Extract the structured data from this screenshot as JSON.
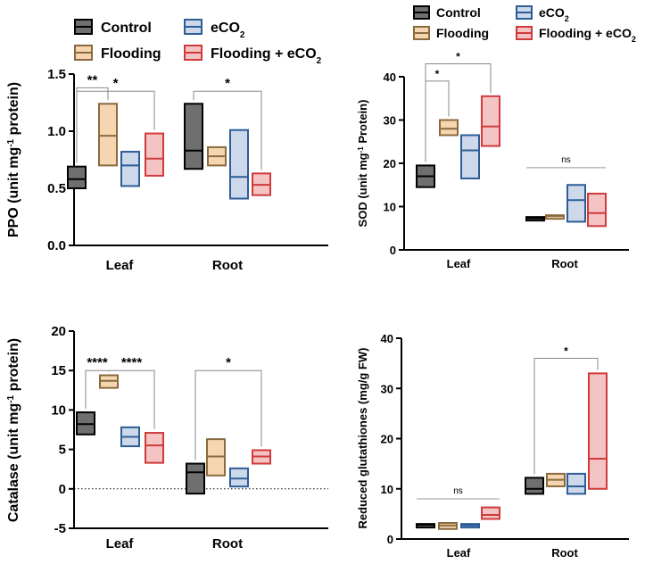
{
  "legend_colors": {
    "Control": {
      "fill": "#6f6f6f",
      "stroke": "#000000"
    },
    "Flooding": {
      "fill": "#f5d6b0",
      "stroke": "#8a6a3e"
    },
    "eCO2": {
      "fill": "#cdd9ea",
      "stroke": "#2d5d97"
    },
    "Flooding + eCO2": {
      "fill": "#f4c4c5",
      "stroke": "#d03a3a"
    }
  },
  "chart_data": [
    {
      "id": "ppo",
      "type": "box",
      "title": "",
      "ylabel": "PPO (unit mg",
      "ylabel_sup": "-1",
      "ylabel_end": " protein)",
      "ylim": [
        0,
        1.5
      ],
      "yticks": [
        "0.0",
        "0.5",
        "1.0",
        "1.5"
      ],
      "categories": [
        "Leaf",
        "Root"
      ],
      "legend": [
        {
          "label": "Control",
          "key": "Control"
        },
        {
          "label": "eCO",
          "sub": "2",
          "key": "eCO2"
        },
        {
          "label": "Flooding",
          "key": "Flooding"
        },
        {
          "label": "Flooding + eCO",
          "sub": "2",
          "key": "Flooding + eCO2"
        }
      ],
      "series": [
        {
          "name": "Control",
          "boxes": [
            {
              "min": 0.5,
              "median": 0.58,
              "max": 0.69
            },
            {
              "min": 0.67,
              "median": 0.83,
              "max": 1.24
            }
          ]
        },
        {
          "name": "Flooding",
          "boxes": [
            {
              "min": 0.7,
              "median": 0.96,
              "max": 1.24
            },
            {
              "min": 0.7,
              "median": 0.78,
              "max": 0.86
            }
          ]
        },
        {
          "name": "eCO2",
          "boxes": [
            {
              "min": 0.52,
              "median": 0.7,
              "max": 0.82
            },
            {
              "min": 0.41,
              "median": 0.6,
              "max": 1.01
            }
          ]
        },
        {
          "name": "Flooding + eCO2",
          "boxes": [
            {
              "min": 0.61,
              "median": 0.76,
              "max": 0.98
            },
            {
              "min": 0.44,
              "median": 0.53,
              "max": 0.63
            }
          ]
        }
      ],
      "annotations": [
        {
          "label": "**",
          "cat": 0,
          "from": 0,
          "to": 1,
          "y": 1.38
        },
        {
          "label": "*",
          "cat": 0,
          "from": 0,
          "to": 3,
          "y": 1.35
        },
        {
          "label": "*",
          "cat": 1,
          "from": 0,
          "to": 3,
          "y": 1.35
        }
      ]
    },
    {
      "id": "sod",
      "type": "box",
      "title": "",
      "ylabel": "SOD (unit mg",
      "ylabel_sup": "-1",
      "ylabel_end": " Protein)",
      "ylim": [
        0,
        40
      ],
      "yticks": [
        "0",
        "10",
        "20",
        "30",
        "40"
      ],
      "categories": [
        "Leaf",
        "Root"
      ],
      "legend": [
        {
          "label": "Control",
          "key": "Control"
        },
        {
          "label": "eCO",
          "sub": "2",
          "key": "eCO2"
        },
        {
          "label": "Flooding",
          "key": "Flooding"
        },
        {
          "label": "Flooding + eCO",
          "sub": "2",
          "key": "Flooding + eCO2"
        }
      ],
      "series": [
        {
          "name": "Control",
          "boxes": [
            {
              "min": 14.5,
              "median": 17.0,
              "max": 19.5
            },
            {
              "min": 7.0,
              "median": 7.3,
              "max": 7.6
            }
          ]
        },
        {
          "name": "Flooding",
          "boxes": [
            {
              "min": 26.5,
              "median": 28.0,
              "max": 30.0
            },
            {
              "min": 7.6,
              "median": 7.8,
              "max": 8.0
            }
          ]
        },
        {
          "name": "eCO2",
          "boxes": [
            {
              "min": 16.5,
              "median": 23.0,
              "max": 26.5
            },
            {
              "min": 6.5,
              "median": 11.5,
              "max": 15.0
            }
          ]
        },
        {
          "name": "Flooding + eCO2",
          "boxes": [
            {
              "min": 24.0,
              "median": 28.5,
              "max": 35.5
            },
            {
              "min": 5.5,
              "median": 8.5,
              "max": 13.0
            }
          ]
        }
      ],
      "annotations": [
        {
          "label": "*",
          "cat": 0,
          "from": 0,
          "to": 1,
          "y": 39.0
        },
        {
          "label": "*",
          "cat": 0,
          "from": 0,
          "to": 3,
          "y": 43.0
        },
        {
          "label": "ns",
          "cat": 1,
          "from": 0,
          "to": 3,
          "y": 19.0,
          "plain": true
        }
      ]
    },
    {
      "id": "catalase",
      "type": "box",
      "title": "",
      "ylabel": "Catalase (unit mg",
      "ylabel_sup": "-1",
      "ylabel_end": " protein)",
      "ylim": [
        -5,
        20
      ],
      "yticks": [
        "-5",
        "0",
        "5",
        "10",
        "15",
        "20"
      ],
      "zero_line": true,
      "categories": [
        "Leaf",
        "Root"
      ],
      "series": [
        {
          "name": "Control",
          "boxes": [
            {
              "min": 6.9,
              "median": 8.2,
              "max": 9.7
            },
            {
              "min": -0.6,
              "median": 2.1,
              "max": 3.2
            }
          ]
        },
        {
          "name": "Flooding",
          "boxes": [
            {
              "min": 12.8,
              "median": 13.7,
              "max": 14.4
            },
            {
              "min": 1.7,
              "median": 4.1,
              "max": 6.3
            }
          ]
        },
        {
          "name": "eCO2",
          "boxes": [
            {
              "min": 5.4,
              "median": 6.6,
              "max": 7.8
            },
            {
              "min": 0.3,
              "median": 1.3,
              "max": 2.6
            }
          ]
        },
        {
          "name": "Flooding + eCO2",
          "boxes": [
            {
              "min": 3.3,
              "median": 5.5,
              "max": 7.1
            },
            {
              "min": 3.2,
              "median": 4.1,
              "max": 4.9
            }
          ]
        }
      ],
      "annotations": [
        {
          "label": "****",
          "cat": 0,
          "from": 0,
          "to": 1,
          "y": 15.0
        },
        {
          "label": "****",
          "cat": 0,
          "from": 1,
          "to": 3,
          "y": 15.0
        },
        {
          "label": "*",
          "cat": 1,
          "from": 0,
          "to": 3,
          "y": 15.0
        }
      ]
    },
    {
      "id": "gsh",
      "type": "box",
      "title": "",
      "ylabel": "Reduced glutathiones (mg/g FW)",
      "ylim": [
        0,
        40
      ],
      "yticks": [
        "0",
        "10",
        "20",
        "30",
        "40"
      ],
      "categories": [
        "Leaf",
        "Root"
      ],
      "series": [
        {
          "name": "Control",
          "boxes": [
            {
              "min": 2.6,
              "median": 2.8,
              "max": 3.0
            },
            {
              "min": 9.0,
              "median": 10.0,
              "max": 12.2
            }
          ]
        },
        {
          "name": "Flooding",
          "boxes": [
            {
              "min": 2.0,
              "median": 2.7,
              "max": 3.2
            },
            {
              "min": 10.5,
              "median": 11.8,
              "max": 13.0
            }
          ]
        },
        {
          "name": "eCO2",
          "boxes": [
            {
              "min": 2.5,
              "median": 2.7,
              "max": 3.0
            },
            {
              "min": 9.0,
              "median": 10.5,
              "max": 13.0
            }
          ]
        },
        {
          "name": "Flooding + eCO2",
          "boxes": [
            {
              "min": 4.0,
              "median": 4.8,
              "max": 6.3
            },
            {
              "min": 10.0,
              "median": 16.0,
              "max": 33.0
            }
          ]
        }
      ],
      "annotations": [
        {
          "label": "ns",
          "cat": 0,
          "from": 0,
          "to": 3,
          "y": 8.0,
          "plain": true
        },
        {
          "label": "*",
          "cat": 1,
          "from": 0,
          "to": 3,
          "y": 36.0
        }
      ]
    }
  ]
}
